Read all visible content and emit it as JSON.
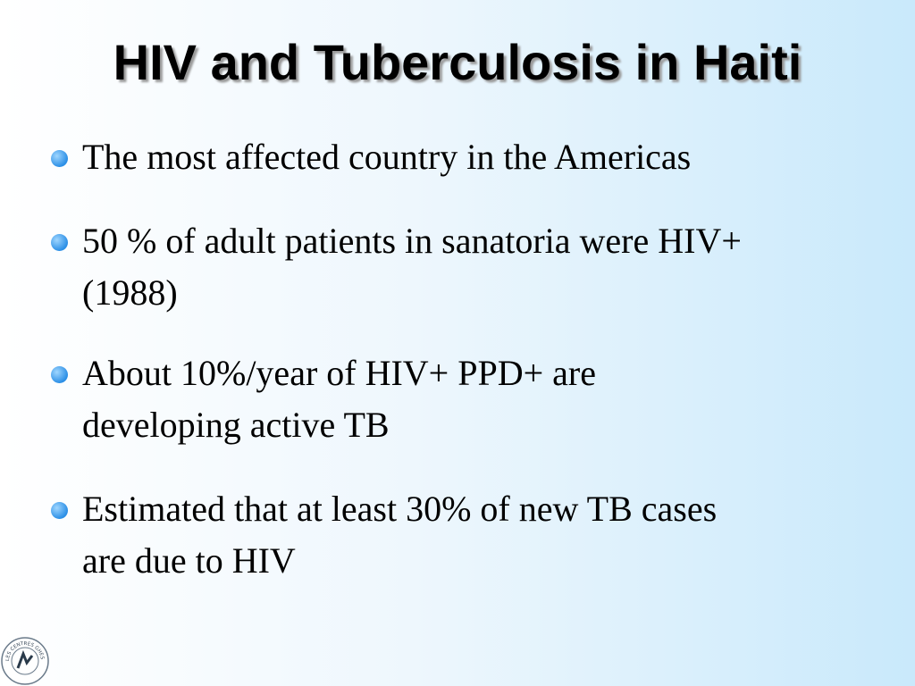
{
  "header": {
    "title": "HIV and Tuberculosis in Haiti"
  },
  "bullets": [
    [
      "The most affected country in the Americas"
    ],
    [
      "50 % of adult patients in sanatoria were HIV+",
      "(1988)"
    ],
    [
      "About 10%/year of HIV+ PPD+ are",
      "developing active TB"
    ],
    [
      "Estimated that at least 30% of new TB cases",
      "are due to HIV"
    ]
  ],
  "logo": {
    "text": "LES CENTRES GHESKIO"
  }
}
